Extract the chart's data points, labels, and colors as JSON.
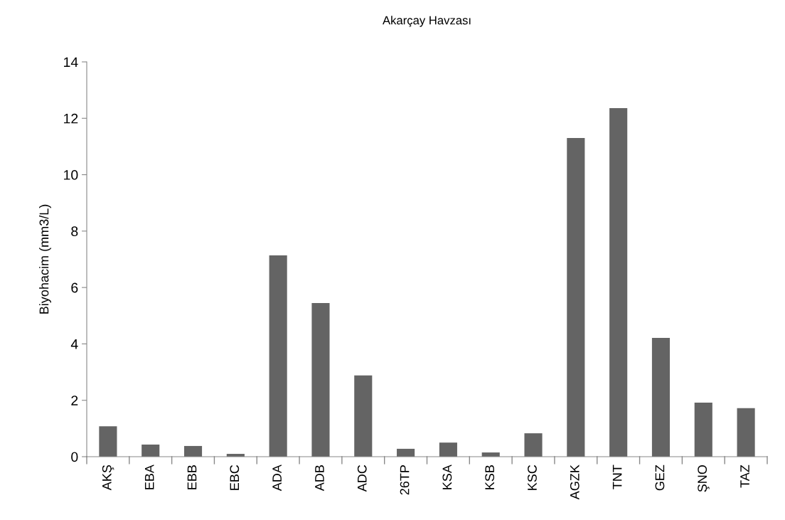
{
  "chart_data": {
    "type": "bar",
    "title": "Akarçay Havzası",
    "ylabel": "Biyohacim (mm3/L)",
    "categories": [
      "AKŞ",
      "EBA",
      "EBB",
      "EBC",
      "ADA",
      "ADB",
      "ADC",
      "26TP",
      "KSA",
      "KSB",
      "KSC",
      "AGZK",
      "TNT",
      "GEZ",
      "ŞNO",
      "TAZ"
    ],
    "values": [
      1.08,
      0.43,
      0.38,
      0.1,
      7.14,
      5.45,
      2.88,
      0.28,
      0.5,
      0.15,
      0.83,
      11.3,
      12.36,
      4.21,
      1.92,
      1.72
    ],
    "color": "#646464",
    "ylim": [
      0,
      14
    ],
    "yticks": [
      0,
      2,
      4,
      6,
      8,
      10,
      12,
      14
    ],
    "grid": false
  }
}
